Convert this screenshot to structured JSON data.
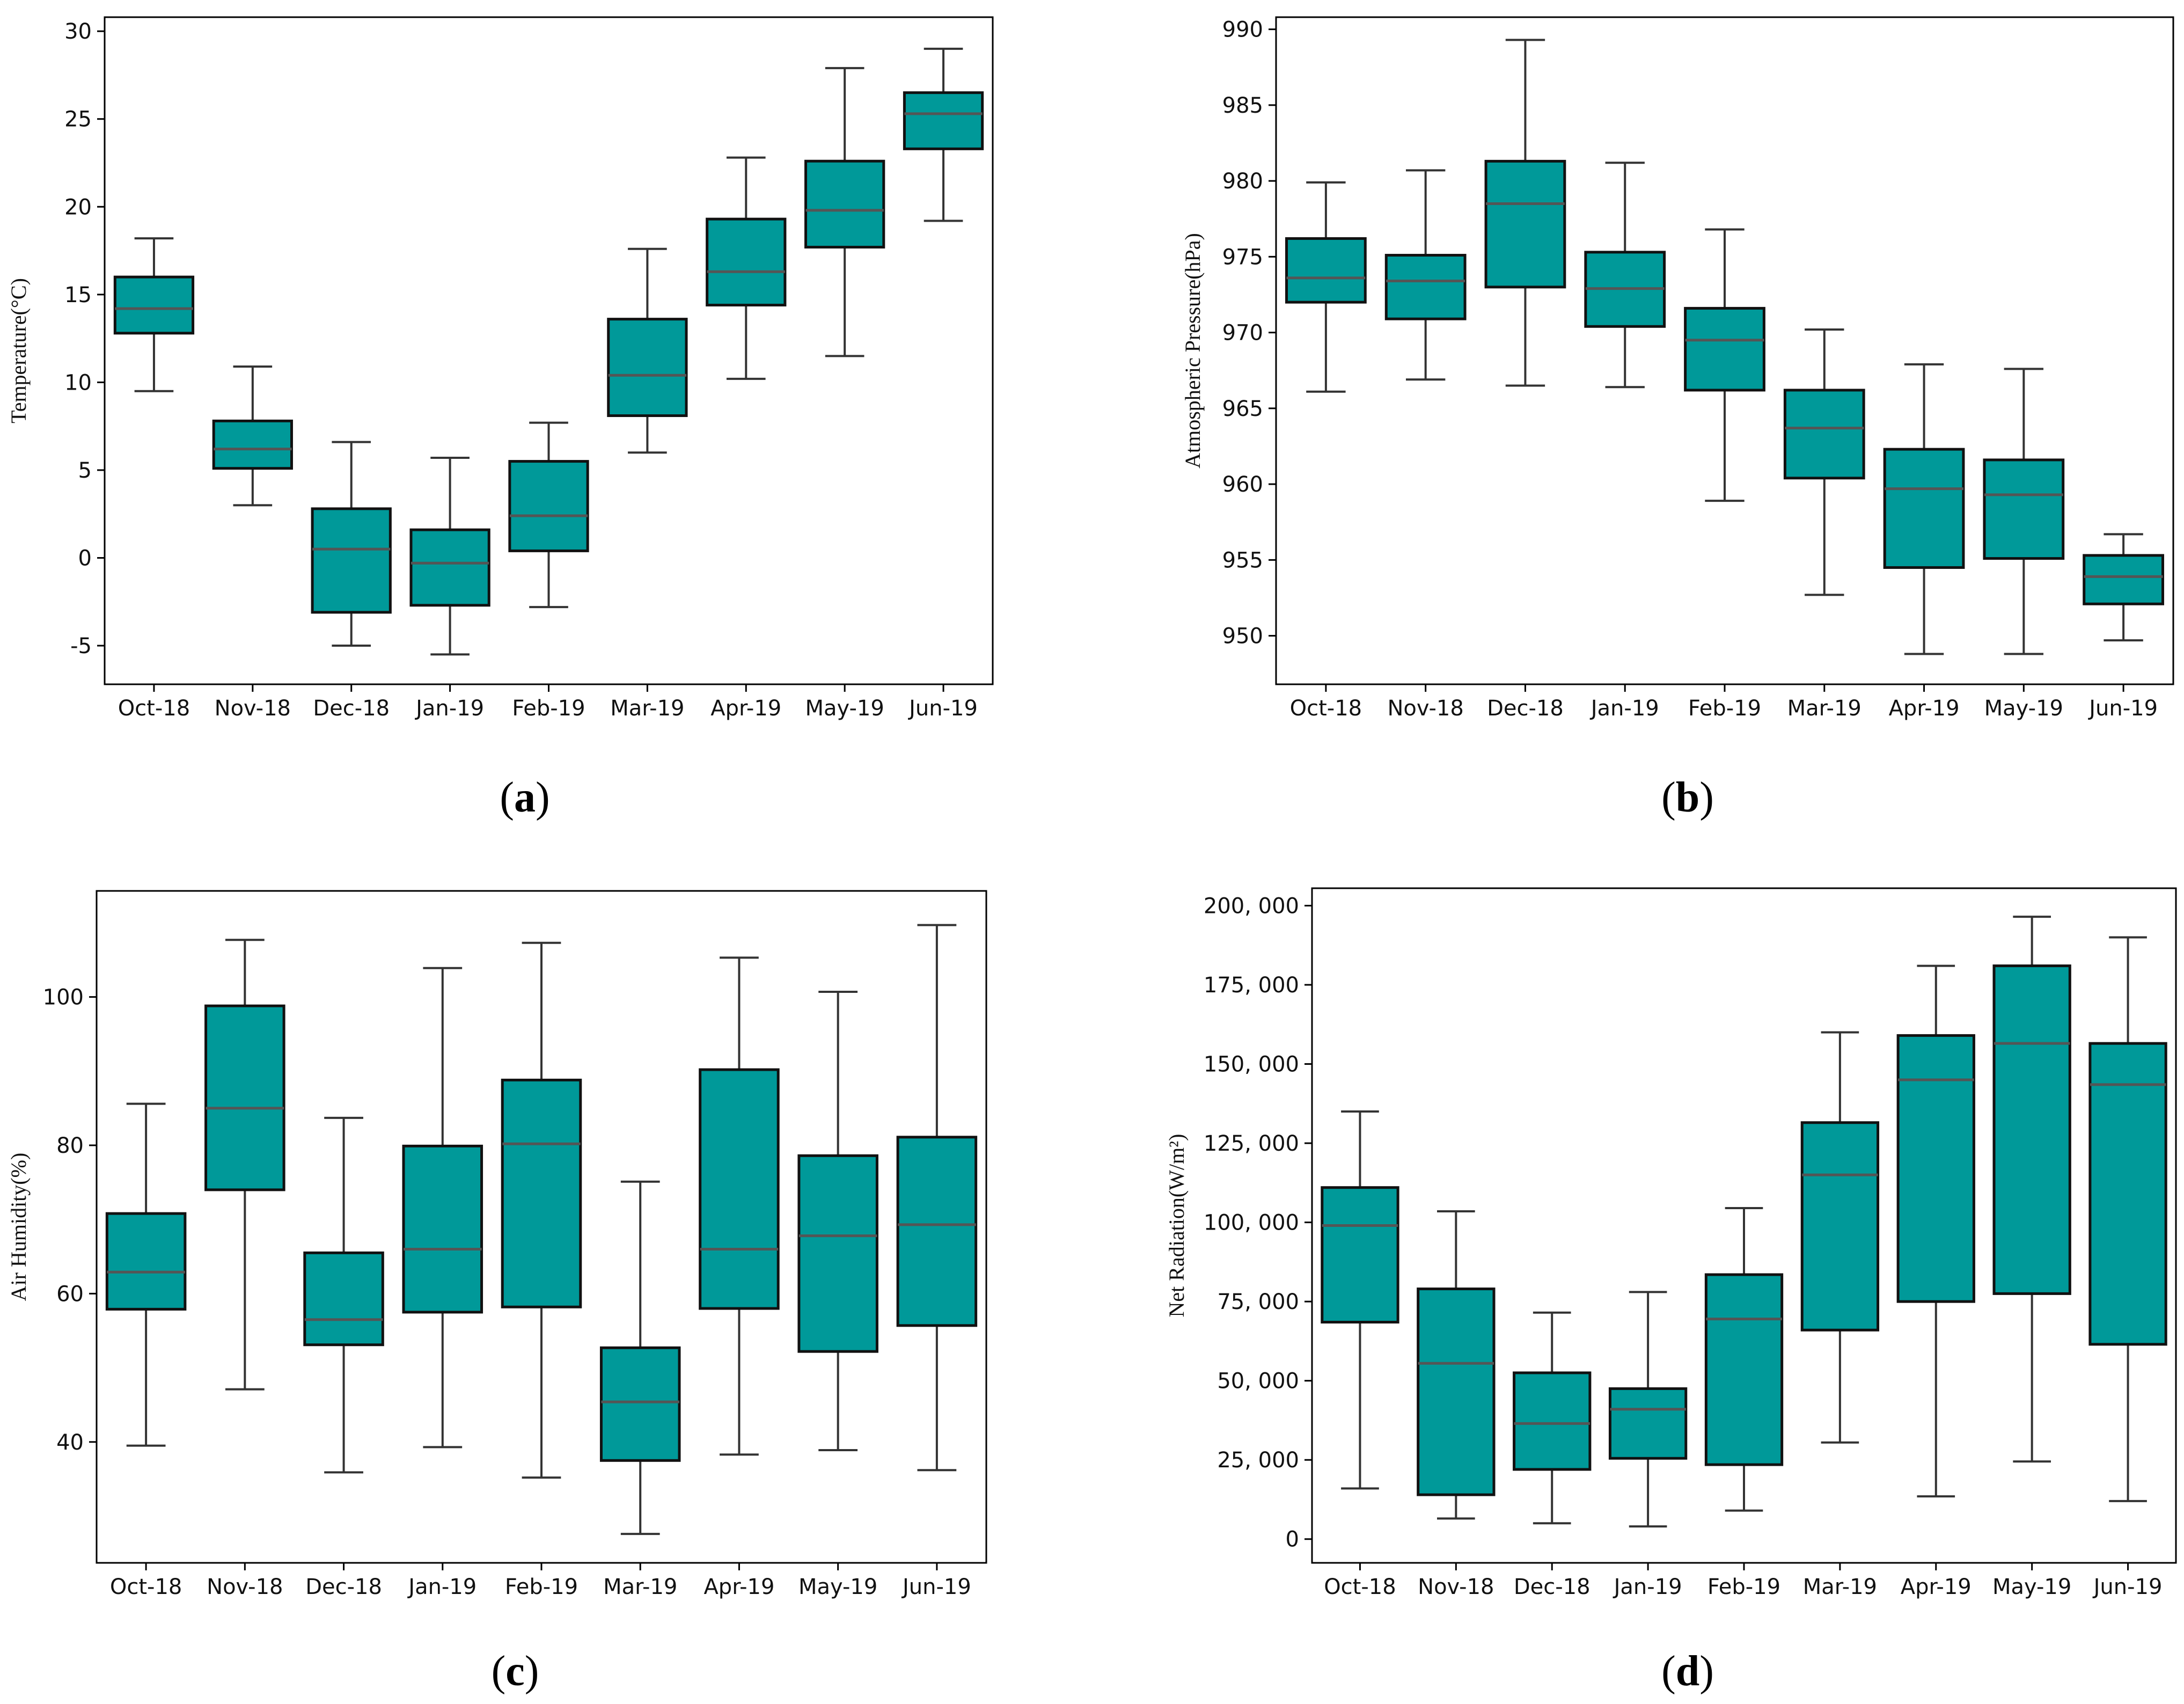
{
  "style": {
    "box_fill": "#009999",
    "box_stroke": "#111111",
    "median_color": "#555555",
    "whisker_color": "#333333",
    "frame_color": "#000000"
  },
  "chart_data": [
    {
      "type": "box",
      "panel": "a",
      "ylabel": "Temperature(°C)",
      "categories": [
        "Oct-18",
        "Nov-18",
        "Dec-18",
        "Jan-19",
        "Feb-19",
        "Mar-19",
        "Apr-19",
        "May-19",
        "Jun-19"
      ],
      "ylim": [
        -7.2,
        30.8
      ],
      "yticks": [
        -5,
        0,
        5,
        10,
        15,
        20,
        25,
        30
      ],
      "ytick_labels": [
        "-5",
        "0",
        "5",
        "10",
        "15",
        "20",
        "25",
        "30"
      ],
      "grid": false,
      "boxes": [
        {
          "whislo": 9.5,
          "q1": 12.8,
          "med": 14.2,
          "q3": 16.0,
          "whishi": 18.2
        },
        {
          "whislo": 3.0,
          "q1": 5.1,
          "med": 6.2,
          "q3": 7.8,
          "whishi": 10.9
        },
        {
          "whislo": -5.0,
          "q1": -3.1,
          "med": 0.5,
          "q3": 2.8,
          "whishi": 6.6
        },
        {
          "whislo": -5.5,
          "q1": -2.7,
          "med": -0.3,
          "q3": 1.6,
          "whishi": 5.7
        },
        {
          "whislo": -2.8,
          "q1": 0.4,
          "med": 2.4,
          "q3": 5.5,
          "whishi": 7.7
        },
        {
          "whislo": 6.0,
          "q1": 8.1,
          "med": 10.4,
          "q3": 13.6,
          "whishi": 17.6
        },
        {
          "whislo": 10.2,
          "q1": 14.4,
          "med": 16.3,
          "q3": 19.3,
          "whishi": 22.8
        },
        {
          "whislo": 11.5,
          "q1": 17.7,
          "med": 19.8,
          "q3": 22.6,
          "whishi": 27.9
        },
        {
          "whislo": 19.2,
          "q1": 23.3,
          "med": 25.3,
          "q3": 26.5,
          "whishi": 29.0
        }
      ]
    },
    {
      "type": "box",
      "panel": "b",
      "ylabel": "Atmospheric Pressure(hPa)",
      "categories": [
        "Oct-18",
        "Nov-18",
        "Dec-18",
        "Jan-19",
        "Feb-19",
        "Mar-19",
        "Apr-19",
        "May-19",
        "Jun-19"
      ],
      "ylim": [
        946.8,
        990.8
      ],
      "yticks": [
        950,
        955,
        960,
        965,
        970,
        975,
        980,
        985,
        990
      ],
      "ytick_labels": [
        "950",
        "955",
        "960",
        "965",
        "970",
        "975",
        "980",
        "985",
        "990"
      ],
      "grid": false,
      "boxes": [
        {
          "whislo": 966.1,
          "q1": 972.0,
          "med": 973.6,
          "q3": 976.2,
          "whishi": 979.9
        },
        {
          "whislo": 966.9,
          "q1": 970.9,
          "med": 973.4,
          "q3": 975.1,
          "whishi": 980.7
        },
        {
          "whislo": 966.5,
          "q1": 973.0,
          "med": 978.5,
          "q3": 981.3,
          "whishi": 989.3
        },
        {
          "whislo": 966.4,
          "q1": 970.4,
          "med": 972.9,
          "q3": 975.3,
          "whishi": 981.2
        },
        {
          "whislo": 958.9,
          "q1": 966.2,
          "med": 969.5,
          "q3": 971.6,
          "whishi": 976.8
        },
        {
          "whislo": 952.7,
          "q1": 960.4,
          "med": 963.7,
          "q3": 966.2,
          "whishi": 970.2
        },
        {
          "whislo": 948.8,
          "q1": 954.5,
          "med": 959.7,
          "q3": 962.3,
          "whishi": 967.9
        },
        {
          "whislo": 948.8,
          "q1": 955.1,
          "med": 959.3,
          "q3": 961.6,
          "whishi": 967.6
        },
        {
          "whislo": 949.7,
          "q1": 952.1,
          "med": 953.9,
          "q3": 955.3,
          "whishi": 956.7
        }
      ]
    },
    {
      "type": "box",
      "panel": "c",
      "ylabel": "Air Humidity(%)",
      "categories": [
        "Oct-18",
        "Nov-18",
        "Dec-18",
        "Jan-19",
        "Feb-19",
        "Mar-19",
        "Apr-19",
        "May-19",
        "Jun-19"
      ],
      "ylim": [
        23.7,
        114.3
      ],
      "yticks": [
        40,
        60,
        80,
        100
      ],
      "ytick_labels": [
        "40",
        "60",
        "80",
        "100"
      ],
      "grid": false,
      "boxes": [
        {
          "whislo": 39.5,
          "q1": 57.9,
          "med": 62.9,
          "q3": 70.8,
          "whishi": 85.6
        },
        {
          "whislo": 47.1,
          "q1": 74.0,
          "med": 85.0,
          "q3": 98.8,
          "whishi": 107.7
        },
        {
          "whislo": 35.9,
          "q1": 53.1,
          "med": 56.5,
          "q3": 65.5,
          "whishi": 83.7
        },
        {
          "whislo": 39.3,
          "q1": 57.5,
          "med": 66.0,
          "q3": 79.9,
          "whishi": 103.9
        },
        {
          "whislo": 35.2,
          "q1": 58.2,
          "med": 80.2,
          "q3": 88.8,
          "whishi": 107.3
        },
        {
          "whislo": 27.6,
          "q1": 37.5,
          "med": 45.4,
          "q3": 52.7,
          "whishi": 75.1
        },
        {
          "whislo": 38.3,
          "q1": 58.0,
          "med": 66.0,
          "q3": 90.2,
          "whishi": 105.3
        },
        {
          "whislo": 38.9,
          "q1": 52.2,
          "med": 67.8,
          "q3": 78.6,
          "whishi": 100.7
        },
        {
          "whislo": 36.2,
          "q1": 55.7,
          "med": 69.3,
          "q3": 81.1,
          "whishi": 109.7
        }
      ]
    },
    {
      "type": "box",
      "panel": "d",
      "ylabel": "Net Radiation(W/m²)",
      "categories": [
        "Oct-18",
        "Nov-18",
        "Dec-18",
        "Jan-19",
        "Feb-19",
        "Mar-19",
        "Apr-19",
        "May-19",
        "Jun-19"
      ],
      "ylim": [
        -7500,
        205500
      ],
      "yticks": [
        0,
        25000,
        50000,
        75000,
        100000,
        125000,
        150000,
        175000,
        200000
      ],
      "ytick_labels": [
        "0",
        "25, 000",
        "50, 000",
        "75, 000",
        "100, 000",
        "125, 000",
        "150, 000",
        "175, 000",
        "200, 000"
      ],
      "grid": false,
      "boxes": [
        {
          "whislo": 16000,
          "q1": 68500,
          "med": 99000,
          "q3": 111000,
          "whishi": 135000
        },
        {
          "whislo": 6500,
          "q1": 14000,
          "med": 55500,
          "q3": 79000,
          "whishi": 103500
        },
        {
          "whislo": 5000,
          "q1": 22000,
          "med": 36500,
          "q3": 52500,
          "whishi": 71500
        },
        {
          "whislo": 4000,
          "q1": 25500,
          "med": 41000,
          "q3": 47500,
          "whishi": 78000
        },
        {
          "whislo": 9000,
          "q1": 23500,
          "med": 69500,
          "q3": 83500,
          "whishi": 104500
        },
        {
          "whislo": 30500,
          "q1": 66000,
          "med": 115000,
          "q3": 131500,
          "whishi": 160000
        },
        {
          "whislo": 13500,
          "q1": 75000,
          "med": 145000,
          "q3": 159000,
          "whishi": 181000
        },
        {
          "whislo": 24500,
          "q1": 77500,
          "med": 156500,
          "q3": 181000,
          "whishi": 196500
        },
        {
          "whislo": 12000,
          "q1": 61500,
          "med": 143500,
          "q3": 156500,
          "whishi": 190000
        }
      ]
    }
  ],
  "captions": [
    {
      "open": "(",
      "letter": "a",
      "close": ")"
    },
    {
      "open": "(",
      "letter": "b",
      "close": ")"
    },
    {
      "open": "(",
      "letter": "c",
      "close": ")"
    },
    {
      "open": "(",
      "letter": "d",
      "close": ")"
    }
  ]
}
